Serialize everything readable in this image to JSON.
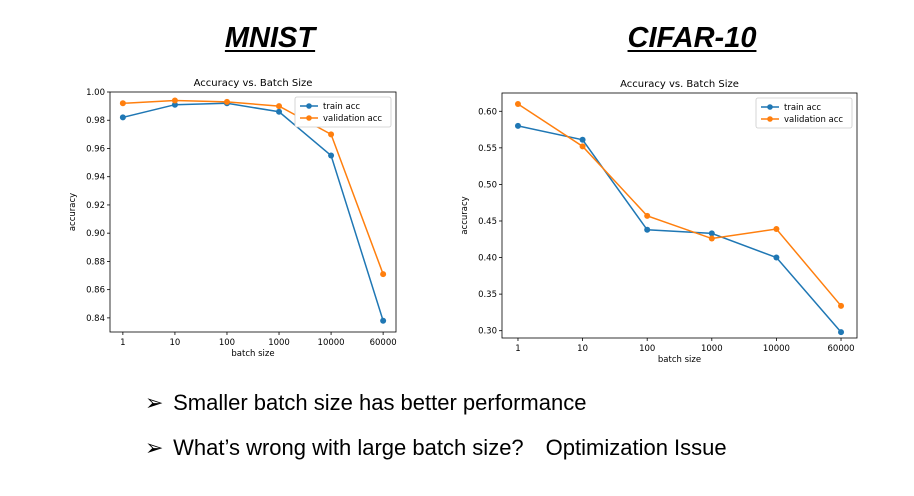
{
  "headings": {
    "left": "MNIST",
    "right": "CIFAR-10"
  },
  "bullets": [
    {
      "marker": "➢",
      "text": "Smaller batch size has better performance"
    },
    {
      "marker": "➢",
      "text": "What’s wrong with large batch size?",
      "extra": "Optimization Issue"
    }
  ],
  "colors": {
    "train": "#1f77b4",
    "validation": "#ff7f0e"
  },
  "chart_data": [
    {
      "type": "line",
      "title": "Accuracy vs. Batch Size",
      "xlabel": "batch size",
      "ylabel": "accuracy",
      "categories": [
        "1",
        "10",
        "100",
        "1000",
        "10000",
        "60000"
      ],
      "ylim": [
        0.83,
        1.0
      ],
      "yticks": [
        "0.84",
        "0.86",
        "0.88",
        "0.90",
        "0.92",
        "0.94",
        "0.96",
        "0.98",
        "1.00"
      ],
      "legend": "top-right",
      "grid": false,
      "series": [
        {
          "name": "train acc",
          "values": [
            0.982,
            0.991,
            0.992,
            0.986,
            0.955,
            0.838
          ]
        },
        {
          "name": "validation acc",
          "values": [
            0.992,
            0.994,
            0.993,
            0.99,
            0.97,
            0.871
          ]
        }
      ]
    },
    {
      "type": "line",
      "title": "Accuracy vs. Batch Size",
      "xlabel": "batch size",
      "ylabel": "accuracy",
      "categories": [
        "1",
        "10",
        "100",
        "1000",
        "10000",
        "60000"
      ],
      "ylim": [
        0.29,
        0.625
      ],
      "yticks": [
        "0.30",
        "0.35",
        "0.40",
        "0.45",
        "0.50",
        "0.55",
        "0.60"
      ],
      "legend": "top-right",
      "grid": false,
      "series": [
        {
          "name": "train acc",
          "values": [
            0.58,
            0.561,
            0.438,
            0.433,
            0.4,
            0.298
          ]
        },
        {
          "name": "validation acc",
          "values": [
            0.61,
            0.552,
            0.457,
            0.426,
            0.439,
            0.334
          ]
        }
      ]
    }
  ]
}
